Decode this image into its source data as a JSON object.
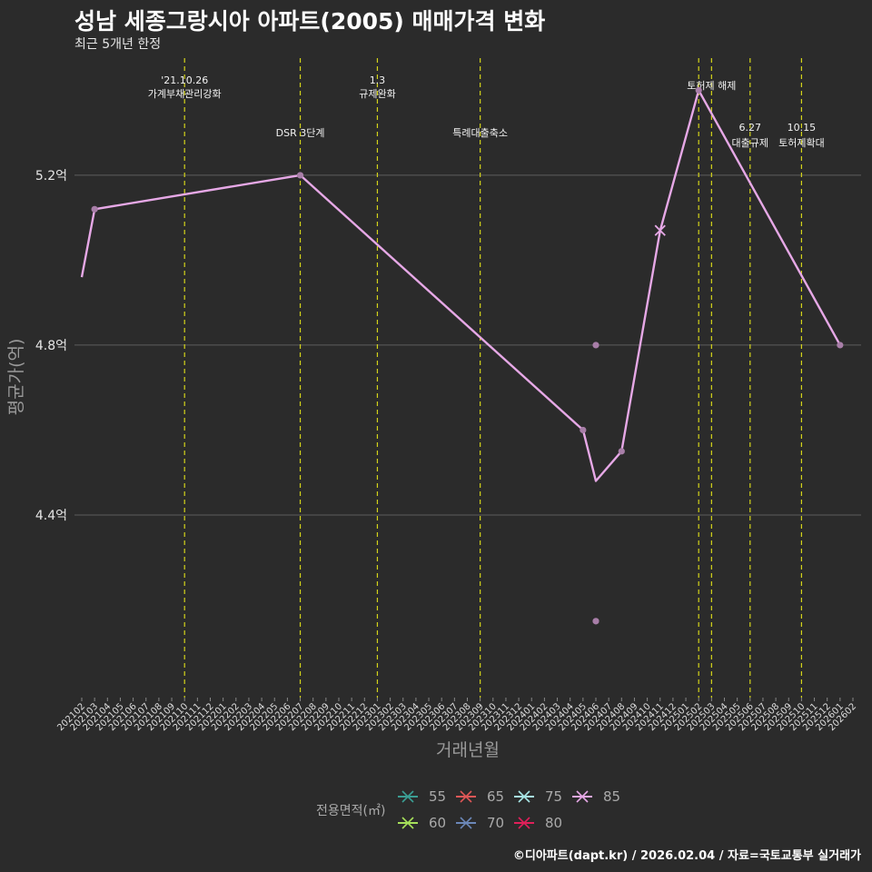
{
  "title": "성남 세종그랑시아 아파트(2005) 매매가격 변화",
  "subtitle": "최근 5개년 한정",
  "footer": "©디아파트(dapt.kr) / 2026.02.04 / 자료=국토교통부 실거래가",
  "chart_data": {
    "type": "line",
    "xlabel": "거래년월",
    "ylabel": "평균가(억)",
    "ylim": [
      3.97,
      5.48
    ],
    "yticks": [
      4.4,
      4.8,
      5.2
    ],
    "ytick_labels": [
      "4.4억",
      "4.8억",
      "5.2억"
    ],
    "categories": [
      "202102",
      "202103",
      "202104",
      "202105",
      "202106",
      "202107",
      "202108",
      "202109",
      "202110",
      "202111",
      "202112",
      "202201",
      "202202",
      "202203",
      "202204",
      "202205",
      "202206",
      "202207",
      "202208",
      "202209",
      "202210",
      "202211",
      "202212",
      "202301",
      "202302",
      "202303",
      "202304",
      "202305",
      "202306",
      "202307",
      "202308",
      "202309",
      "202310",
      "202311",
      "202312",
      "202401",
      "202402",
      "202403",
      "202404",
      "202405",
      "202406",
      "202407",
      "202408",
      "202409",
      "202410",
      "202411",
      "202412",
      "202501",
      "202502",
      "202503",
      "202504",
      "202505",
      "202506",
      "202507",
      "202508",
      "202509",
      "202510",
      "202511",
      "202512",
      "202601",
      "202602"
    ],
    "series": [
      {
        "name": "85",
        "color": "#e6a8e6",
        "line": [
          [
            "202102",
            4.96
          ],
          [
            "202103",
            5.12
          ],
          [
            "202207",
            5.2
          ],
          [
            "202405",
            4.6
          ],
          [
            "202406",
            4.48
          ],
          [
            "202408",
            4.55
          ],
          [
            "202411",
            5.07
          ],
          [
            "202502",
            5.4
          ],
          [
            "202601",
            4.8
          ]
        ],
        "points": [
          [
            "202103",
            5.12
          ],
          [
            "202207",
            5.2
          ],
          [
            "202405",
            4.6
          ],
          [
            "202406",
            4.8
          ],
          [
            "202406",
            4.15
          ],
          [
            "202408",
            4.55
          ],
          [
            "202502",
            5.4
          ],
          [
            "202601",
            4.8
          ]
        ],
        "cross_markers": [
          [
            "202411",
            5.07
          ]
        ]
      }
    ],
    "events": [
      {
        "x": "202110",
        "lines": [
          "'21.10.26",
          "가계부채관리강화"
        ],
        "level": 0
      },
      {
        "x": "202207",
        "lines": [
          "DSR 3단계"
        ],
        "level": 2
      },
      {
        "x": "202301",
        "lines": [
          "1.3",
          "규제완화"
        ],
        "level": 0
      },
      {
        "x": "202309",
        "lines": [
          "특례대출축소"
        ],
        "level": 2
      },
      {
        "x": "202502",
        "lines": [],
        "level": 0
      },
      {
        "x": "202503",
        "lines": [
          "토허제 해제"
        ],
        "level": 1
      },
      {
        "x": "202506",
        "lines": [
          "6.27",
          "대출규제"
        ],
        "level": 3
      },
      {
        "x": "202510",
        "lines": [
          "10.15",
          "토허제확대"
        ],
        "level": 3
      }
    ],
    "legend": {
      "title": "전용면적(㎡)",
      "items": [
        {
          "label": "55",
          "color": "#3b9e94"
        },
        {
          "label": "65",
          "color": "#e05757"
        },
        {
          "label": "75",
          "color": "#a8e6e6"
        },
        {
          "label": "85",
          "color": "#e6a8e6"
        },
        {
          "label": "60",
          "color": "#a6e05a"
        },
        {
          "label": "70",
          "color": "#6b87b8"
        },
        {
          "label": "80",
          "color": "#e0205a"
        }
      ]
    },
    "colors": {
      "background": "#2b2b2b",
      "grid": "#5e5e5e",
      "event_line": "#d4d41a",
      "point": "#a87ea8"
    }
  }
}
